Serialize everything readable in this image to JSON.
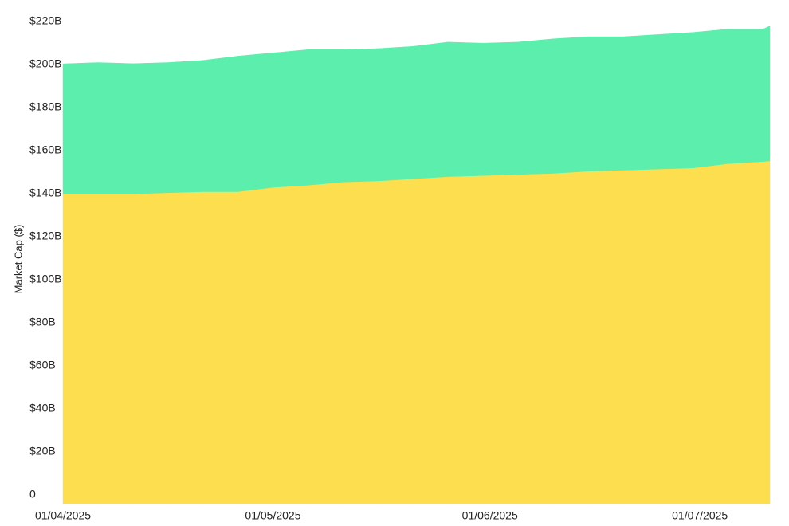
{
  "chart_data": {
    "type": "stacked-area",
    "y_label": "Market Cap ($)",
    "x": [
      "2025-04-01",
      "2025-04-06",
      "2025-04-11",
      "2025-04-16",
      "2025-04-21",
      "2025-04-26",
      "2025-05-01",
      "2025-05-06",
      "2025-05-11",
      "2025-05-16",
      "2025-05-21",
      "2025-05-26",
      "2025-05-31",
      "2025-06-05",
      "2025-06-10",
      "2025-06-15",
      "2025-06-20",
      "2025-06-25",
      "2025-06-30",
      "2025-07-05",
      "2025-07-10",
      "2025-07-11"
    ],
    "series": [
      {
        "color": "#fdde4f",
        "values": [
          144,
          144,
          144,
          144.5,
          145,
          145,
          147,
          148,
          149.5,
          150,
          151,
          152,
          152.5,
          153,
          153.5,
          154.5,
          155,
          155.5,
          156,
          158,
          159,
          159.3
        ]
      },
      {
        "color": "#5ceead",
        "values": [
          60.4,
          61,
          60.5,
          60.5,
          61,
          63,
          62.5,
          63,
          61.5,
          61.5,
          61.5,
          62.5,
          61.5,
          61.5,
          62.5,
          62.5,
          62,
          62.5,
          63,
          62.5,
          61.5,
          62.7
        ]
      }
    ],
    "xlim": [
      "2025-04-01",
      "2025-07-11"
    ],
    "xticks": [
      {
        "value": "2025-04-01",
        "label": "01/04/2025"
      },
      {
        "value": "2025-05-01",
        "label": "01/05/2025"
      },
      {
        "value": "2025-06-01",
        "label": "01/06/2025"
      },
      {
        "value": "2025-07-01",
        "label": "01/07/2025"
      }
    ],
    "ylim": [
      0,
      220
    ],
    "yticks": [
      0,
      {
        "value": 20,
        "label": "$20B"
      },
      {
        "value": 40,
        "label": "$40B"
      },
      {
        "value": 60,
        "label": "$60B"
      },
      {
        "value": 80,
        "label": "$80B"
      },
      {
        "value": 100,
        "label": "$100B"
      },
      {
        "value": 120,
        "label": "$120B"
      },
      {
        "value": 140,
        "label": "$140B"
      },
      {
        "value": 160,
        "label": "$160B"
      },
      {
        "value": 180,
        "label": "$180B"
      },
      {
        "value": 200,
        "label": "$200B"
      },
      {
        "value": 220,
        "label": "$220B"
      }
    ],
    "grid": false
  }
}
